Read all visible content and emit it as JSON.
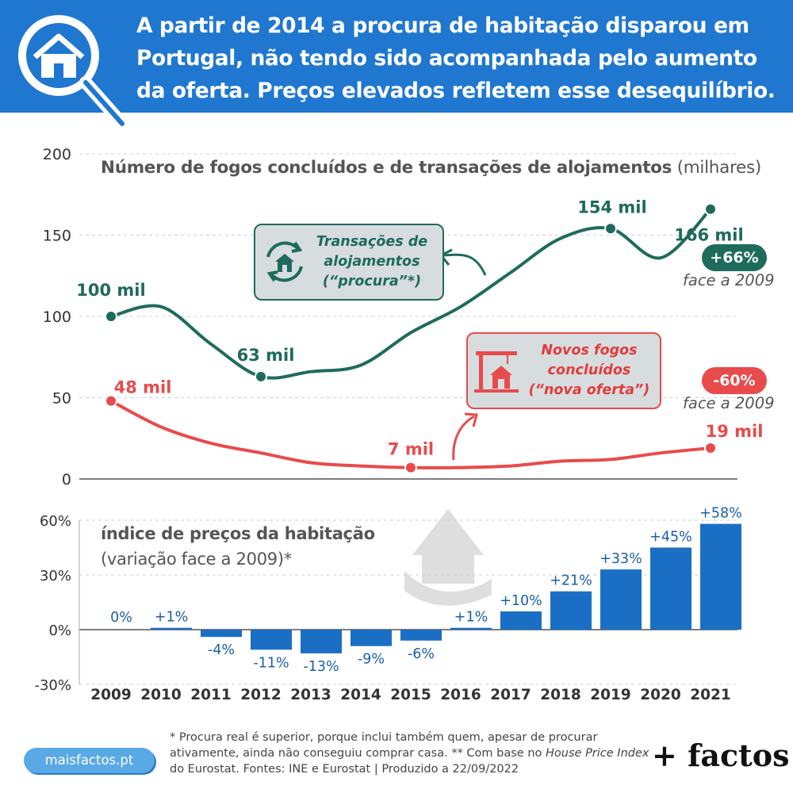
{
  "header": {
    "title": "A partir de 2014 a procura de habitação disparou em Portugal, não tendo sido acompanhada pelo aumento da oferta. Preços elevados refletem esse desequilíbrio.",
    "logo_icon": "house-search-icon"
  },
  "colors": {
    "header": "#1f77d0",
    "procura": "#1e6b5c",
    "oferta": "#e84b4b",
    "bars": "#1a6fc4",
    "axis_text": "#333333"
  },
  "chart_data": [
    {
      "type": "line",
      "title_bold": "Número de fogos concluídos e de transações de alojamentos",
      "title_unit": "(milhares)",
      "x": [
        2009,
        2010,
        2011,
        2012,
        2013,
        2014,
        2015,
        2016,
        2017,
        2018,
        2019,
        2020,
        2021
      ],
      "ylim": [
        0,
        200
      ],
      "yticks": [
        0,
        50,
        100,
        150,
        200
      ],
      "grid": true,
      "series": [
        {
          "name": "Transações de alojamentos (“procura”*)",
          "color": "#1e6b5c",
          "values": [
            100,
            106,
            83,
            63,
            66,
            70,
            90,
            106,
            127,
            148,
            154,
            136,
            166
          ],
          "point_labels": {
            "0": "100 mil",
            "3": "63 mil",
            "10": "154 mil",
            "12": "166 mil"
          }
        },
        {
          "name": "Novos fogos concluídos (“nova oferta”)",
          "color": "#e84b4b",
          "values": [
            48,
            32,
            22,
            16,
            10,
            8,
            7,
            7,
            8,
            11,
            12,
            16,
            19
          ],
          "point_labels": {
            "0": "48 mil",
            "6": "7 mil",
            "12": "19 mil"
          }
        }
      ],
      "callouts": {
        "procura": {
          "line1": "Transações de",
          "line2": "alojamentos",
          "line3": "(“procura”*)",
          "icon": "house-cycle-icon"
        },
        "oferta": {
          "line1": "Novos fogos",
          "line2": "concluídos",
          "line3": "(“nova oferta”)",
          "icon": "construction-crane-icon"
        }
      },
      "badges": {
        "procura": {
          "value": "+66%",
          "note": "face a 2009"
        },
        "oferta": {
          "value": "-60%",
          "note": "face a 2009"
        }
      }
    },
    {
      "type": "bar",
      "title_bold": "índice de preços da habitação",
      "title_sub": "(variação face a 2009)*",
      "categories": [
        "2009",
        "2010",
        "2011",
        "2012",
        "2013",
        "2014",
        "2015",
        "2016",
        "2017",
        "2018",
        "2019",
        "2020",
        "2021"
      ],
      "values": [
        0,
        1,
        -4,
        -11,
        -13,
        -9,
        -6,
        1,
        10,
        21,
        33,
        45,
        58
      ],
      "labels": [
        "0%",
        "+1%",
        "-4%",
        "-11%",
        "-13%",
        "-9%",
        "-6%",
        "+1%",
        "+10%",
        "+21%",
        "+33%",
        "+45%",
        "+58%"
      ],
      "ylim": [
        -30,
        60
      ],
      "yticks": [
        60,
        30,
        0,
        -30
      ],
      "ytick_labels": [
        "60%",
        "30%",
        "0%",
        "-30%"
      ],
      "color": "#1a6fc4",
      "watermark_icon": "house-in-hand-icon"
    }
  ],
  "footer": {
    "url": "maisfactos.pt",
    "note_part1": "* Procura real é superior, porque inclui também quem, apesar de procurar ativamente, ainda não conseguiu comprar casa. ** Com base no ",
    "note_italic": "House Price Index",
    "note_part2": " do Eurostat. Fontes: INE e Eurostat | Produzido a 22/09/2022",
    "brand": "+ factos"
  }
}
